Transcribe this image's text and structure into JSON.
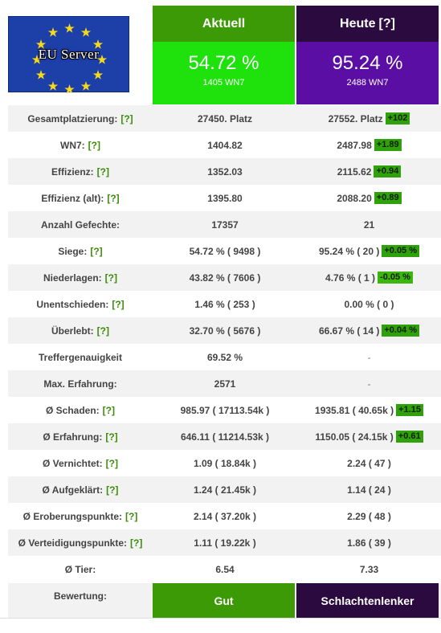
{
  "header": {
    "server_label": "EU Server",
    "aktuell": {
      "title": "Aktuell",
      "winrate": "54.72 %",
      "wn7": "1405 WN7",
      "color": "#1fe20c"
    },
    "heute": {
      "title": "Heute",
      "help": "[?]",
      "winrate": "95.24 %",
      "wn7": "2488 WN7",
      "color": "#5b0ea3"
    }
  },
  "rows": [
    {
      "label": "Gesamtplatzierung:",
      "help": "[?]",
      "aktuell": "27450. Platz",
      "heute": "27552. Platz",
      "delta": "+102"
    },
    {
      "label": "WN7:",
      "help": "[?]",
      "aktuell": "1404.82",
      "heute": "2487.98",
      "delta": "+1.89"
    },
    {
      "label": "Effizienz:",
      "help": "[?]",
      "aktuell": "1352.03",
      "heute": "2115.62",
      "delta": "+0.94"
    },
    {
      "label": "Effizienz (alt):",
      "help": "[?]",
      "aktuell": "1395.80",
      "heute": "2088.20",
      "delta": "+0.89"
    },
    {
      "label": "Anzahl Gefechte:",
      "help": "",
      "aktuell": "17357",
      "heute": "21",
      "delta": ""
    },
    {
      "label": "Siege:",
      "help": "[?]",
      "aktuell": "54.72 % ( 9498 )",
      "heute": "95.24 % ( 20 )",
      "delta": "+0.05 %"
    },
    {
      "label": "Niederlagen:",
      "help": "[?]",
      "aktuell": "43.82 % ( 7606 )",
      "heute": "4.76 % ( 1 )",
      "delta": "-0.05 %"
    },
    {
      "label": "Unentschieden:",
      "help": "[?]",
      "aktuell": "1.46 % ( 253 )",
      "heute": "0.00 % ( 0 )",
      "delta": ""
    },
    {
      "label": "Überlebt:",
      "help": "[?]",
      "aktuell": "32.70 % ( 5676 )",
      "heute": "66.67 % ( 14 )",
      "delta": "+0.04 %"
    },
    {
      "label": "Treffergenauigkeit",
      "help": "",
      "aktuell": "69.52 %",
      "heute": "-",
      "delta": ""
    },
    {
      "label": "Max. Erfahrung:",
      "help": "",
      "aktuell": "2571",
      "heute": "-",
      "delta": ""
    },
    {
      "label": "Ø Schaden:",
      "help": "[?]",
      "aktuell": "985.97 ( 17113.54k )",
      "heute": "1935.81 ( 40.65k )",
      "delta": "+1.15"
    },
    {
      "label": "Ø Erfahrung:",
      "help": "[?]",
      "aktuell": "646.11 ( 11214.53k )",
      "heute": "1150.05 ( 24.15k )",
      "delta": "+0.61"
    },
    {
      "label": "Ø Vernichtet:",
      "help": "[?]",
      "aktuell": "1.09 ( 18.84k )",
      "heute": "2.24 ( 47 )",
      "delta": ""
    },
    {
      "label": "Ø Aufgeklärt:",
      "help": "[?]",
      "aktuell": "1.24 ( 21.45k )",
      "heute": "1.14 ( 24 )",
      "delta": ""
    },
    {
      "label": "Ø Eroberungspunkte:",
      "help": "[?]",
      "aktuell": "2.14 ( 37.20k )",
      "heute": "2.29 ( 48 )",
      "delta": ""
    },
    {
      "label": "Ø Verteidigungspunkte:",
      "help": "[?]",
      "aktuell": "1.11 ( 19.22k )",
      "heute": "1.86 ( 39 )",
      "delta": ""
    },
    {
      "label": "Ø Tier:",
      "help": "",
      "aktuell": "6.54",
      "heute": "7.33",
      "delta": ""
    }
  ],
  "bewertung": {
    "label": "Bewertung:",
    "aktuell": "Gut",
    "heute": "Schlachtenlenker"
  },
  "colors": {
    "green_dark": "#3d9a07",
    "green_bright": "#1fe20c",
    "purple_dark": "#2a0a3f",
    "purple": "#5b0ea3",
    "delta": "#2ea10b"
  }
}
